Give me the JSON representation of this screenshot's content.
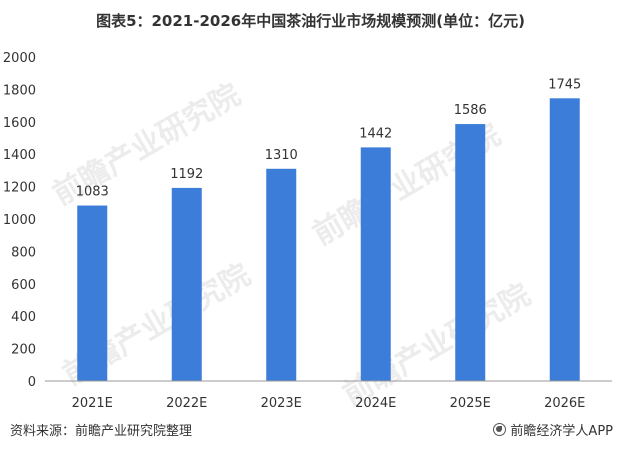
{
  "title": "图表5：2021-2026年中国茶油行业市场规模预测(单位：亿元)",
  "source": "资料来源：前瞻产业研究院整理",
  "brand": "前瞻经济学人APP",
  "watermark": "前瞻产业研究院",
  "colors": {
    "bar": "#3b7dd8",
    "axis": "#999999",
    "label": "#333333"
  },
  "chart_data": {
    "type": "bar",
    "categories": [
      "2021E",
      "2022E",
      "2023E",
      "2024E",
      "2025E",
      "2026E"
    ],
    "values": [
      1083,
      1192,
      1310,
      1442,
      1586,
      1745
    ],
    "ylim": [
      0,
      2000
    ],
    "yticks": [
      0,
      200,
      400,
      600,
      800,
      1000,
      1200,
      1400,
      1600,
      1800,
      2000
    ],
    "grid": false,
    "legend": "none"
  }
}
